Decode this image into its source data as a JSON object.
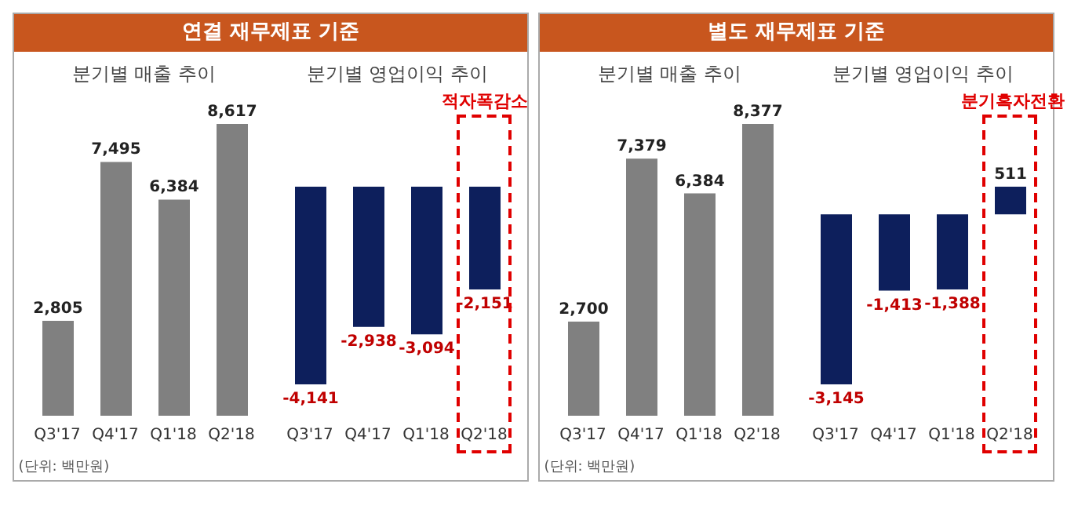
{
  "chart_data": [
    {
      "type": "bar",
      "title": "연결 재무제표 기준",
      "subtitle": "분기별 매출 추이",
      "categories": [
        "Q3'17",
        "Q4'17",
        "Q1'18",
        "Q2'18"
      ],
      "values": [
        2805,
        7495,
        6384,
        8617
      ],
      "value_labels": [
        "2,805",
        "7,495",
        "6,384",
        "8,617"
      ],
      "color": "#808080",
      "grid": false,
      "legend": false,
      "annotations": [
        "(단위: 백만원)"
      ]
    },
    {
      "type": "bar",
      "title": "분기별 영업이익 추이",
      "categories": [
        "Q3'17",
        "Q4'17",
        "Q1'18",
        "Q2'18"
      ],
      "values": [
        -4141,
        -2938,
        -3094,
        -2151
      ],
      "value_labels": [
        "-4,141",
        "-2,938",
        "-3,094",
        "-2,151"
      ],
      "color": "#0d1f5c",
      "grid": false,
      "legend": false,
      "annotations": [
        "적자폭감소"
      ]
    },
    {
      "type": "bar",
      "title": "별도 재무제표 기준",
      "subtitle": "분기별 매출 추이",
      "categories": [
        "Q3'17",
        "Q4'17",
        "Q1'18",
        "Q2'18"
      ],
      "values": [
        2700,
        7379,
        6384,
        8377
      ],
      "value_labels": [
        "2,700",
        "7,379",
        "6,384",
        "8,377"
      ],
      "color": "#808080",
      "grid": false,
      "legend": false,
      "annotations": [
        "(단위: 백만원)"
      ]
    },
    {
      "type": "bar",
      "title": "분기별 영업이익 추이",
      "categories": [
        "Q3'17",
        "Q4'17",
        "Q1'18",
        "Q2'18"
      ],
      "values": [
        -3145,
        -1413,
        -1388,
        511
      ],
      "value_labels": [
        "-3,145",
        "-1,413",
        "-1,388",
        "511"
      ],
      "color": "#0d1f5c",
      "grid": false,
      "legend": false,
      "annotations": [
        "분기흑자전환"
      ]
    }
  ]
}
